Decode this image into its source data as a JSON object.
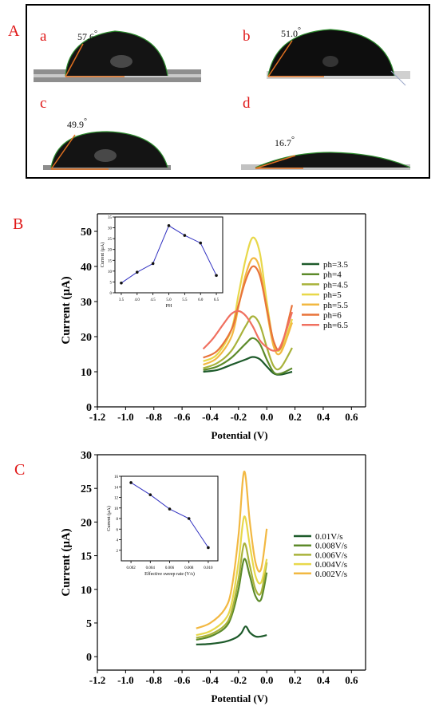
{
  "panel_a": {
    "label": "A",
    "photos": [
      {
        "letter": "a",
        "angle": "57.6",
        "degree_mark": "°"
      },
      {
        "letter": "b",
        "angle": "51.0",
        "degree_mark": "°"
      },
      {
        "letter": "c",
        "angle": "49.9",
        "degree_mark": "°"
      },
      {
        "letter": "d",
        "angle": "16.7",
        "degree_mark": "°"
      }
    ]
  },
  "panel_b_label": "B",
  "panel_c_label": "C",
  "colors": {
    "panel_letter": "#e01818",
    "inset_line": "#3030c0",
    "series_b": [
      "#1d5a2a",
      "#5c8a2a",
      "#a8b23a",
      "#e8d84a",
      "#f2b842",
      "#e8733a",
      "#f07060"
    ],
    "series_c": [
      "#1d5a2a",
      "#5c8a2a",
      "#a8b23a",
      "#e8d84a",
      "#f2b842"
    ]
  },
  "chart_data": [
    {
      "id": "B",
      "type": "line",
      "title": "",
      "xlabel": "Potential (V)",
      "ylabel": "Current (μA)",
      "xlim": [
        -1.2,
        0.7
      ],
      "ylim": [
        0,
        55
      ],
      "xticks": [
        "-1.2",
        "-1.0",
        "-0.8",
        "-0.6",
        "-0.4",
        "-0.2",
        "0.0",
        "0.2",
        "0.4",
        "0.6"
      ],
      "xtick_values": [
        -1.2,
        -1.0,
        -0.8,
        -0.6,
        -0.4,
        -0.2,
        0.0,
        0.2,
        0.4,
        0.6
      ],
      "yticks": [
        "0",
        "10",
        "20",
        "30",
        "40",
        "50"
      ],
      "ytick_values": [
        0,
        10,
        20,
        30,
        40,
        50
      ],
      "legend_position": "right",
      "series": [
        {
          "name": "ph=3.5",
          "x": [
            -0.45,
            -0.35,
            -0.25,
            -0.15,
            -0.1,
            -0.05,
            0.0,
            0.05,
            0.1,
            0.18
          ],
          "y": [
            10.0,
            10.5,
            12.0,
            13.5,
            14.2,
            13.6,
            11.5,
            9.5,
            9.2,
            10.0
          ]
        },
        {
          "name": "ph=4",
          "x": [
            -0.45,
            -0.35,
            -0.25,
            -0.15,
            -0.1,
            -0.05,
            0.0,
            0.05,
            0.1,
            0.18
          ],
          "y": [
            10.5,
            11.5,
            14.0,
            18.0,
            19.6,
            18.0,
            13.5,
            9.8,
            9.5,
            11.0
          ]
        },
        {
          "name": "ph=4.5",
          "x": [
            -0.45,
            -0.35,
            -0.25,
            -0.15,
            -0.1,
            -0.05,
            0.0,
            0.05,
            0.1,
            0.18
          ],
          "y": [
            11.0,
            12.5,
            16.0,
            23.0,
            25.8,
            23.5,
            17.0,
            11.5,
            11.2,
            16.8
          ]
        },
        {
          "name": "ph=5",
          "x": [
            -0.45,
            -0.35,
            -0.25,
            -0.2,
            -0.15,
            -0.1,
            -0.05,
            0.0,
            0.05,
            0.1,
            0.18
          ],
          "y": [
            13.0,
            15.0,
            22.0,
            32.0,
            42.0,
            48.2,
            44.0,
            30.0,
            18.0,
            16.5,
            25.0
          ]
        },
        {
          "name": "ph=5.5",
          "x": [
            -0.45,
            -0.35,
            -0.25,
            -0.2,
            -0.15,
            -0.1,
            -0.05,
            0.0,
            0.05,
            0.1,
            0.18
          ],
          "y": [
            12.0,
            14.0,
            20.0,
            28.5,
            37.5,
            42.3,
            39.5,
            27.5,
            17.0,
            15.5,
            24.0
          ]
        },
        {
          "name": "ph=6",
          "x": [
            -0.45,
            -0.35,
            -0.25,
            -0.2,
            -0.15,
            -0.1,
            -0.05,
            0.0,
            0.05,
            0.1,
            0.18
          ],
          "y": [
            14.0,
            16.0,
            22.0,
            29.0,
            36.0,
            40.0,
            37.5,
            28.0,
            18.5,
            17.0,
            29.0
          ]
        },
        {
          "name": "ph=6.5",
          "x": [
            -0.45,
            -0.38,
            -0.3,
            -0.25,
            -0.2,
            -0.15,
            -0.1,
            -0.05,
            0.0,
            0.05,
            0.1,
            0.18
          ],
          "y": [
            16.5,
            19.5,
            24.0,
            26.5,
            27.3,
            26.0,
            23.0,
            19.0,
            17.0,
            16.0,
            17.5,
            27.0
          ]
        }
      ],
      "inset": {
        "type": "line",
        "xlabel": "PH",
        "ylabel": "Current (μA)",
        "xlim": [
          3.3,
          6.7
        ],
        "ylim": [
          0,
          35
        ],
        "xticks": [
          "3.5",
          "4.0",
          "4.5",
          "5.0",
          "5.5",
          "6.0",
          "6.5"
        ],
        "xtick_values": [
          3.5,
          4.0,
          4.5,
          5.0,
          5.5,
          6.0,
          6.5
        ],
        "yticks": [
          "0",
          "5",
          "10",
          "15",
          "20",
          "25",
          "30",
          "35"
        ],
        "ytick_values": [
          0,
          5,
          10,
          15,
          20,
          25,
          30,
          35
        ],
        "x": [
          3.5,
          4.0,
          4.5,
          5.0,
          5.5,
          6.0,
          6.5
        ],
        "y": [
          4.5,
          9.5,
          13.5,
          31.0,
          26.5,
          23.0,
          8.0
        ]
      }
    },
    {
      "id": "C",
      "type": "line",
      "title": "",
      "xlabel": "Potential (V)",
      "ylabel": "Current (μA)",
      "xlim": [
        -1.2,
        0.7
      ],
      "ylim": [
        -2,
        30
      ],
      "xticks": [
        "-1.2",
        "-1.0",
        "-0.8",
        "-0.6",
        "-0.4",
        "-0.2",
        "0.0",
        "0.2",
        "0.4",
        "0.6"
      ],
      "xtick_values": [
        -1.2,
        -1.0,
        -0.8,
        -0.6,
        -0.4,
        -0.2,
        0.0,
        0.2,
        0.4,
        0.6
      ],
      "yticks": [
        "0",
        "5",
        "10",
        "15",
        "20",
        "25",
        "30"
      ],
      "ytick_values": [
        0,
        5,
        10,
        15,
        20,
        25,
        30
      ],
      "legend_position": "right",
      "series": [
        {
          "name": "0.01V/s",
          "x": [
            -0.5,
            -0.4,
            -0.3,
            -0.22,
            -0.18,
            -0.15,
            -0.12,
            -0.08,
            -0.04,
            0.0
          ],
          "y": [
            1.8,
            1.9,
            2.2,
            2.8,
            3.5,
            4.5,
            3.6,
            3.0,
            3.0,
            3.2
          ]
        },
        {
          "name": "0.008V/s",
          "x": [
            -0.5,
            -0.4,
            -0.3,
            -0.25,
            -0.2,
            -0.16,
            -0.12,
            -0.08,
            -0.04,
            0.0
          ],
          "y": [
            2.5,
            3.0,
            4.2,
            6.0,
            10.0,
            14.5,
            12.0,
            9.0,
            8.5,
            12.5
          ]
        },
        {
          "name": "0.006V/s",
          "x": [
            -0.5,
            -0.4,
            -0.3,
            -0.25,
            -0.2,
            -0.16,
            -0.12,
            -0.08,
            -0.04,
            0.0
          ],
          "y": [
            2.8,
            3.3,
            4.6,
            6.6,
            11.5,
            16.8,
            13.5,
            10.0,
            9.5,
            14.0
          ]
        },
        {
          "name": "0.004V/s",
          "x": [
            -0.5,
            -0.4,
            -0.3,
            -0.25,
            -0.2,
            -0.16,
            -0.12,
            -0.08,
            -0.04,
            0.0
          ],
          "y": [
            3.2,
            3.8,
            5.4,
            7.8,
            14.0,
            20.8,
            16.5,
            12.0,
            11.0,
            14.5
          ]
        },
        {
          "name": "0.002V/s",
          "x": [
            -0.5,
            -0.4,
            -0.3,
            -0.25,
            -0.2,
            -0.16,
            -0.12,
            -0.08,
            -0.04,
            0.0
          ],
          "y": [
            4.2,
            5.0,
            7.0,
            10.0,
            18.0,
            27.5,
            20.0,
            14.0,
            13.0,
            19.0
          ]
        }
      ],
      "inset": {
        "type": "line",
        "xlabel": "Effective sweep rate (V/s)",
        "ylabel": "Current (μA)",
        "xlim": [
          0.001,
          0.011
        ],
        "ylim": [
          0,
          16
        ],
        "xticks": [
          "0.002",
          "0.004",
          "0.006",
          "0.008",
          "0.010"
        ],
        "xtick_values": [
          0.002,
          0.004,
          0.006,
          0.008,
          0.01
        ],
        "yticks": [
          "2",
          "4",
          "6",
          "8",
          "10",
          "12",
          "14",
          "16"
        ],
        "ytick_values": [
          2,
          4,
          6,
          8,
          10,
          12,
          14,
          16
        ],
        "x": [
          0.002,
          0.004,
          0.006,
          0.008,
          0.01
        ],
        "y": [
          14.8,
          12.5,
          9.8,
          8.0,
          2.5
        ]
      }
    }
  ]
}
